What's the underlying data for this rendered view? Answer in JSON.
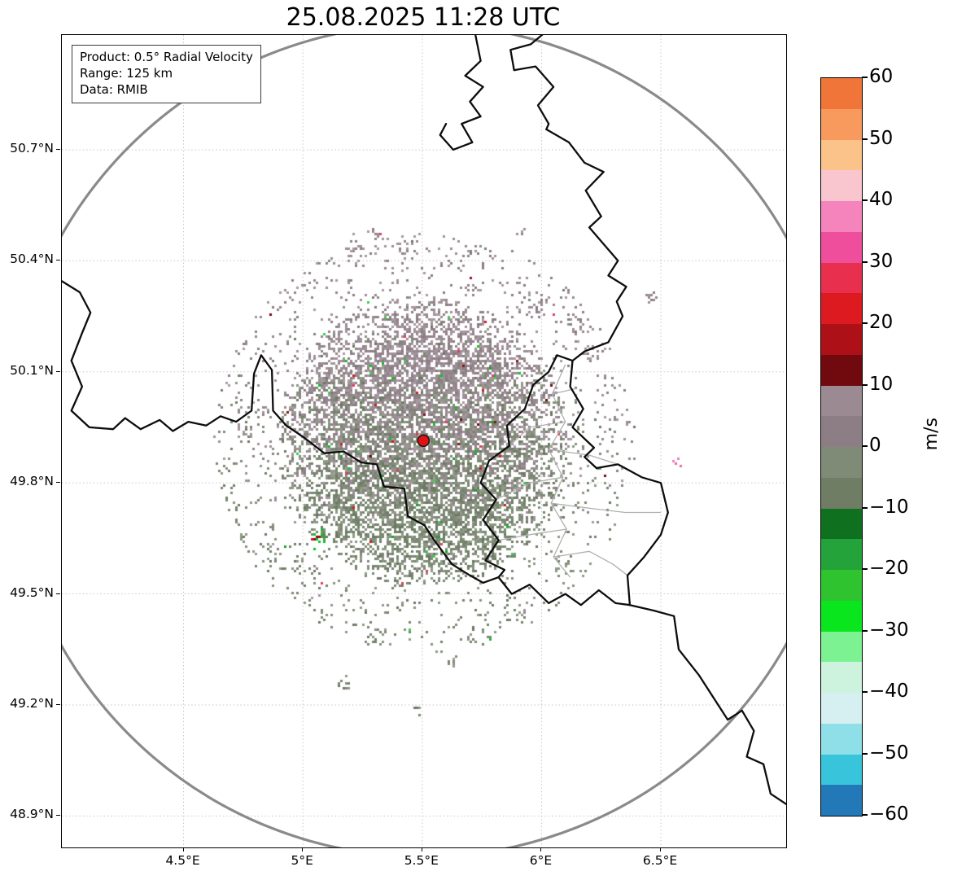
{
  "title": "25.08.2025 11:28 UTC",
  "info_box": {
    "lines": [
      "Product: 0.5° Radial Velocity",
      "Range: 125 km",
      "Data: RMIB"
    ]
  },
  "chart_data": {
    "type": "scatter",
    "title": "25.08.2025 11:28 UTC",
    "xlabel": "",
    "ylabel": "",
    "grid": true,
    "map_projection": "plate-carree",
    "xlim": [
      3.99,
      7.025
    ],
    "ylim": [
      48.815,
      51.01
    ],
    "x_ticks": [
      {
        "value": 4.5,
        "label": "4.5°E"
      },
      {
        "value": 5.0,
        "label": "5°E"
      },
      {
        "value": 5.5,
        "label": "5.5°E"
      },
      {
        "value": 6.0,
        "label": "6°E"
      },
      {
        "value": 6.5,
        "label": "6.5°E"
      }
    ],
    "y_ticks": [
      {
        "value": 50.7,
        "label": "50.7°N"
      },
      {
        "value": 50.4,
        "label": "50.4°N"
      },
      {
        "value": 50.1,
        "label": "50.1°N"
      },
      {
        "value": 49.8,
        "label": "49.8°N"
      },
      {
        "value": 49.5,
        "label": "49.5°N"
      },
      {
        "value": 49.2,
        "label": "49.2°N"
      },
      {
        "value": 48.9,
        "label": "48.9°N"
      }
    ],
    "radar": {
      "center_lon": 5.505,
      "center_lat": 49.914,
      "range_km": 125,
      "range_ring_color": "#8a8a8a",
      "marker_color": "#e01212"
    },
    "colorbar": {
      "label": "m/s",
      "min": -60,
      "max": 60,
      "ticks": [
        {
          "value": 60,
          "label": "60"
        },
        {
          "value": 50,
          "label": "50"
        },
        {
          "value": 40,
          "label": "40"
        },
        {
          "value": 30,
          "label": "30"
        },
        {
          "value": 20,
          "label": "20"
        },
        {
          "value": 10,
          "label": "10"
        },
        {
          "value": 0,
          "label": "0"
        },
        {
          "value": -10,
          "label": "−10"
        },
        {
          "value": -20,
          "label": "−20"
        },
        {
          "value": -30,
          "label": "−30"
        },
        {
          "value": -40,
          "label": "−40"
        },
        {
          "value": -50,
          "label": "−50"
        },
        {
          "value": -60,
          "label": "−60"
        }
      ],
      "segments": [
        {
          "from": 55,
          "to": 60,
          "color": "#ef7539"
        },
        {
          "from": 50,
          "to": 55,
          "color": "#f89a5e"
        },
        {
          "from": 45,
          "to": 50,
          "color": "#fbc28a"
        },
        {
          "from": 40,
          "to": 45,
          "color": "#f9c6d0"
        },
        {
          "from": 35,
          "to": 40,
          "color": "#f584bc"
        },
        {
          "from": 30,
          "to": 35,
          "color": "#ee4e9b"
        },
        {
          "from": 25,
          "to": 30,
          "color": "#e8304e"
        },
        {
          "from": 20,
          "to": 25,
          "color": "#dc1a20"
        },
        {
          "from": 15,
          "to": 20,
          "color": "#ad1016"
        },
        {
          "from": 10,
          "to": 15,
          "color": "#700a0f"
        },
        {
          "from": 5,
          "to": 10,
          "color": "#9b8a91"
        },
        {
          "from": 0,
          "to": 5,
          "color": "#8d7e85"
        },
        {
          "from": -5,
          "to": 0,
          "color": "#7f8b76"
        },
        {
          "from": -10,
          "to": -5,
          "color": "#6e7d64"
        },
        {
          "from": -15,
          "to": -10,
          "color": "#0f7020"
        },
        {
          "from": -20,
          "to": -15,
          "color": "#23a33a"
        },
        {
          "from": -25,
          "to": -20,
          "color": "#2fc32f"
        },
        {
          "from": -30,
          "to": -25,
          "color": "#0ae61e"
        },
        {
          "from": -35,
          "to": -30,
          "color": "#7df293"
        },
        {
          "from": -40,
          "to": -35,
          "color": "#cdf2dd"
        },
        {
          "from": -45,
          "to": -40,
          "color": "#d6f0f2"
        },
        {
          "from": -50,
          "to": -45,
          "color": "#8fdfe8"
        },
        {
          "from": -55,
          "to": -50,
          "color": "#38c4da"
        },
        {
          "from": -60,
          "to": -55,
          "color": "#2379b8"
        }
      ]
    },
    "borders": {
      "country_color": "#0d0d0d",
      "admin_color": "#b0b0b0",
      "country": [
        [
          [
            5.72,
            51.02
          ],
          [
            5.745,
            50.94
          ],
          [
            5.68,
            50.9
          ],
          [
            5.755,
            50.87
          ],
          [
            5.7,
            50.83
          ],
          [
            5.745,
            50.79
          ],
          [
            5.665,
            50.77
          ],
          [
            5.71,
            50.72
          ],
          [
            5.63,
            50.7
          ],
          [
            5.575,
            50.74
          ],
          [
            5.6,
            50.77
          ]
        ],
        [
          [
            6.02,
            51.02
          ],
          [
            5.955,
            50.985
          ],
          [
            5.87,
            50.97
          ],
          [
            5.885,
            50.915
          ],
          [
            5.975,
            50.925
          ],
          [
            6.05,
            50.87
          ],
          [
            5.985,
            50.82
          ],
          [
            6.03,
            50.77
          ],
          [
            6.02,
            50.755
          ]
        ],
        [
          [
            6.02,
            50.755
          ],
          [
            6.115,
            50.72
          ],
          [
            6.18,
            50.665
          ],
          [
            6.26,
            50.64
          ],
          [
            6.185,
            50.59
          ],
          [
            6.25,
            50.52
          ],
          [
            6.2,
            50.49
          ],
          [
            6.32,
            50.4
          ],
          [
            6.28,
            50.36
          ],
          [
            6.355,
            50.33
          ],
          [
            6.315,
            50.29
          ],
          [
            6.34,
            50.25
          ],
          [
            6.28,
            50.18
          ],
          [
            6.18,
            50.155
          ],
          [
            6.13,
            50.13
          ]
        ],
        [
          [
            6.13,
            50.13
          ],
          [
            6.12,
            50.06
          ],
          [
            6.175,
            50.0
          ],
          [
            6.13,
            49.95
          ],
          [
            6.22,
            49.895
          ],
          [
            6.18,
            49.87
          ],
          [
            6.23,
            49.84
          ],
          [
            6.32,
            49.85
          ],
          [
            6.42,
            49.815
          ],
          [
            6.5,
            49.8
          ],
          [
            6.53,
            49.72
          ],
          [
            6.5,
            49.66
          ],
          [
            6.43,
            49.6
          ],
          [
            6.36,
            49.55
          ],
          [
            6.37,
            49.47
          ]
        ],
        [
          [
            6.37,
            49.47
          ],
          [
            6.47,
            49.455
          ],
          [
            6.555,
            49.44
          ],
          [
            6.575,
            49.35
          ],
          [
            6.66,
            49.28
          ],
          [
            6.72,
            49.22
          ],
          [
            6.78,
            49.16
          ],
          [
            6.84,
            49.185
          ],
          [
            6.89,
            49.13
          ],
          [
            6.86,
            49.06
          ],
          [
            6.93,
            49.04
          ],
          [
            6.96,
            48.96
          ],
          [
            7.03,
            48.93
          ]
        ],
        [
          [
            6.13,
            50.13
          ],
          [
            6.065,
            50.145
          ],
          [
            6.03,
            50.1
          ],
          [
            5.965,
            50.065
          ],
          [
            5.93,
            50.0
          ],
          [
            5.855,
            49.955
          ],
          [
            5.865,
            49.9
          ],
          [
            5.78,
            49.86
          ],
          [
            5.745,
            49.8
          ],
          [
            5.81,
            49.755
          ],
          [
            5.755,
            49.7
          ],
          [
            5.82,
            49.645
          ],
          [
            5.765,
            49.59
          ],
          [
            5.845,
            49.565
          ],
          [
            5.82,
            49.545
          ]
        ],
        [
          [
            3.99,
            50.345
          ],
          [
            4.065,
            50.315
          ],
          [
            4.11,
            50.26
          ],
          [
            4.075,
            50.205
          ],
          [
            4.03,
            50.13
          ],
          [
            4.075,
            50.06
          ],
          [
            4.03,
            49.995
          ],
          [
            4.105,
            49.95
          ],
          [
            4.205,
            49.945
          ],
          [
            4.255,
            49.975
          ],
          [
            4.32,
            49.945
          ],
          [
            4.4,
            49.97
          ],
          [
            4.455,
            49.94
          ],
          [
            4.52,
            49.965
          ],
          [
            4.595,
            49.955
          ],
          [
            4.655,
            49.98
          ],
          [
            4.72,
            49.965
          ],
          [
            4.785,
            49.995
          ],
          [
            4.795,
            50.095
          ],
          [
            4.825,
            50.145
          ],
          [
            4.87,
            50.105
          ],
          [
            4.875,
            49.995
          ],
          [
            4.93,
            49.955
          ],
          [
            5.01,
            49.92
          ],
          [
            5.09,
            49.88
          ],
          [
            5.17,
            49.885
          ],
          [
            5.245,
            49.855
          ],
          [
            5.31,
            49.85
          ],
          [
            5.34,
            49.79
          ],
          [
            5.425,
            49.785
          ],
          [
            5.44,
            49.71
          ],
          [
            5.51,
            49.685
          ],
          [
            5.55,
            49.645
          ],
          [
            5.625,
            49.58
          ],
          [
            5.7,
            49.55
          ],
          [
            5.755,
            49.53
          ],
          [
            5.82,
            49.545
          ]
        ],
        [
          [
            5.82,
            49.545
          ],
          [
            5.875,
            49.5
          ],
          [
            5.95,
            49.525
          ],
          [
            6.03,
            49.475
          ],
          [
            6.1,
            49.5
          ],
          [
            6.165,
            49.47
          ],
          [
            6.24,
            49.51
          ],
          [
            6.31,
            49.475
          ],
          [
            6.37,
            49.47
          ]
        ]
      ],
      "admin": [
        [
          [
            6.1,
            50.12
          ],
          [
            6.045,
            50.04
          ],
          [
            6.1,
            49.965
          ],
          [
            6.03,
            49.89
          ],
          [
            6.09,
            49.815
          ],
          [
            6.04,
            49.745
          ],
          [
            6.105,
            49.675
          ],
          [
            6.05,
            49.6
          ],
          [
            6.12,
            49.545
          ]
        ],
        [
          [
            6.045,
            50.04
          ],
          [
            6.145,
            50.055
          ]
        ],
        [
          [
            6.03,
            49.89
          ],
          [
            6.2,
            49.875
          ],
          [
            6.32,
            49.85
          ]
        ],
        [
          [
            6.09,
            49.815
          ],
          [
            5.95,
            49.8
          ],
          [
            5.81,
            49.755
          ]
        ],
        [
          [
            6.04,
            49.745
          ],
          [
            6.22,
            49.73
          ],
          [
            6.35,
            49.72
          ],
          [
            6.5,
            49.72
          ]
        ],
        [
          [
            6.105,
            49.675
          ],
          [
            5.95,
            49.66
          ],
          [
            5.82,
            49.645
          ]
        ],
        [
          [
            6.05,
            49.6
          ],
          [
            6.2,
            49.615
          ],
          [
            6.3,
            49.58
          ],
          [
            6.36,
            49.55
          ]
        ],
        [
          [
            6.1,
            49.965
          ],
          [
            5.95,
            49.95
          ],
          [
            5.865,
            49.9
          ]
        ]
      ]
    },
    "echo_field": {
      "seed": 1337,
      "pixel_size": 3,
      "gradient_span": 240,
      "core": {
        "points": 17000,
        "radius": 180,
        "dense_radius": 100,
        "inner_density": 0.82,
        "edge_density": 0.1
      },
      "halo": {
        "points": 3000,
        "r_min": 172,
        "r_max": 258,
        "keep": 0.28
      },
      "palette_positive": [
        "#a2929b",
        "#978790",
        "#8c7d85",
        "#a99aa2",
        "#91828a",
        "#9e8e96"
      ],
      "palette_negative": [
        "#7e8c76",
        "#74826b",
        "#87947f",
        "#6b7a62",
        "#8f9c87",
        "#798770"
      ],
      "special_prob": 0.014,
      "special_colors": [
        "#05c621",
        "#13a32c",
        "#31d648",
        "#d2192a",
        "#951016",
        "#6f0a10",
        "#e23d5f"
      ],
      "clusters": [
        {
          "dx": -89,
          "dy": -240,
          "n": 16,
          "spread": 9
        },
        {
          "dx": 56,
          "dy": -236,
          "n": 10,
          "spread": 7
        },
        {
          "dx": 141,
          "dy": -170,
          "n": 20,
          "spread": 10
        },
        {
          "dx": 186,
          "dy": -148,
          "n": 12,
          "spread": 8
        },
        {
          "dx": 281,
          "dy": -178,
          "n": 10,
          "spread": 6
        },
        {
          "dx": 206,
          "dy": -112,
          "n": 10,
          "spread": 7
        },
        {
          "dx": 311,
          "dy": 25,
          "n": 5,
          "spread": 4,
          "colors": [
            "#ef7db4",
            "#e86aa8"
          ]
        },
        {
          "dx": -219,
          "dy": -18,
          "n": 14,
          "spread": 9
        },
        {
          "dx": -154,
          "dy": 148,
          "n": 12,
          "spread": 8
        },
        {
          "dx": -129,
          "dy": 118,
          "n": 14,
          "spread": 8,
          "colors": [
            "#d2192a",
            "#8c0e14",
            "#7e8c76",
            "#05c621"
          ]
        },
        {
          "dx": -59,
          "dy": 238,
          "n": 12,
          "spread": 8
        },
        {
          "dx": -99,
          "dy": 298,
          "n": 10,
          "spread": 7
        },
        {
          "dx": 111,
          "dy": 213,
          "n": 12,
          "spread": 8
        },
        {
          "dx": 36,
          "dy": 268,
          "n": 8,
          "spread": 6
        },
        {
          "dx": -10,
          "dy": 330,
          "n": 6,
          "spread": 5
        },
        {
          "dx": 118,
          "dy": -258,
          "n": 6,
          "spread": 5
        },
        {
          "dx": -60,
          "dy": -255,
          "n": 8,
          "spread": 6
        }
      ]
    }
  }
}
